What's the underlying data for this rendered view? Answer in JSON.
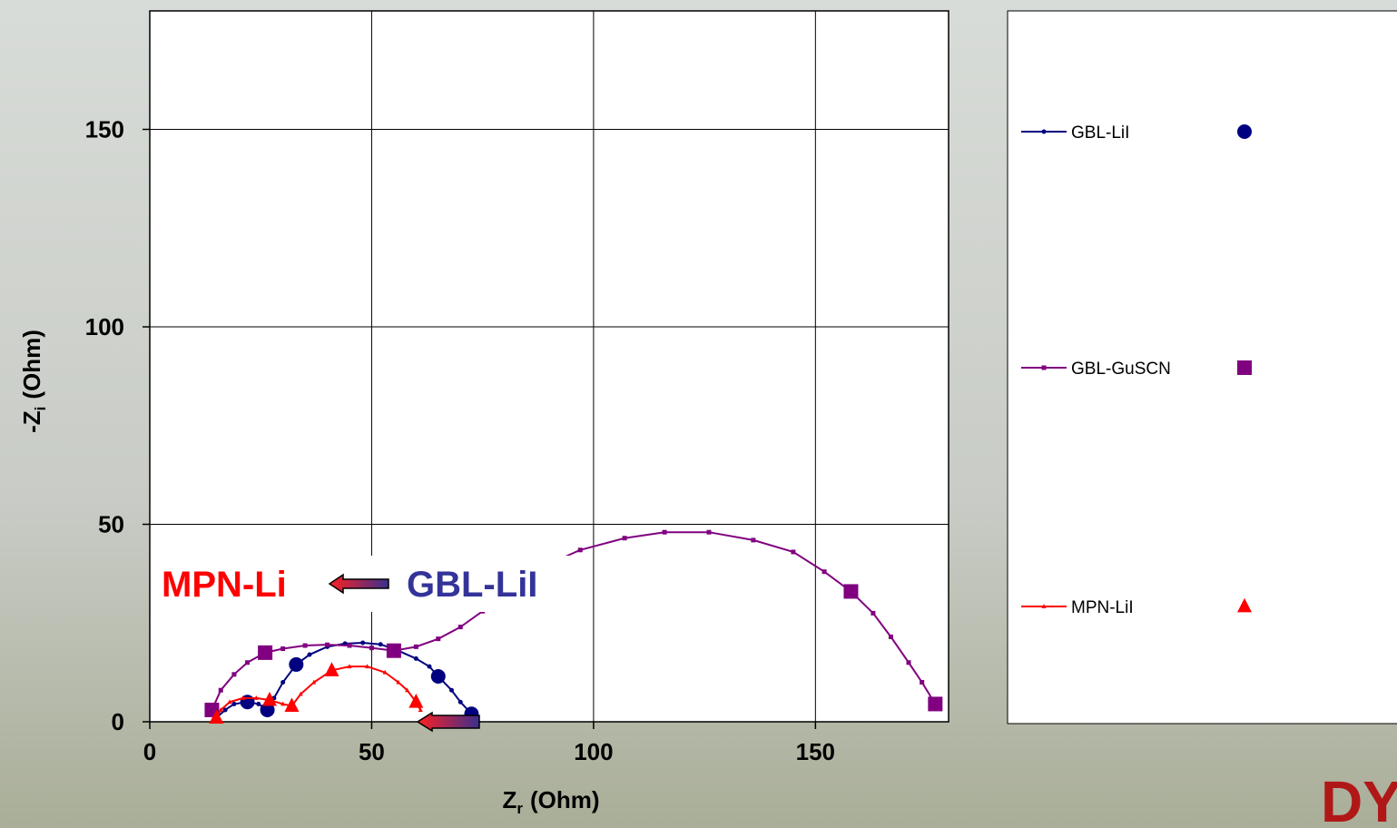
{
  "chart_data": {
    "type": "line",
    "xlabel": {
      "main": "Z",
      "sub": "r",
      "unit": "(Ohm)"
    },
    "ylabel": {
      "main": "-Z",
      "sub": "i",
      "unit": "(Ohm)"
    },
    "xlim": [
      0,
      180
    ],
    "ylim": [
      0,
      180
    ],
    "xticks": [
      0,
      50,
      100,
      150
    ],
    "yticks": [
      0,
      50,
      100,
      150
    ],
    "grid": true,
    "legend": "right",
    "series": [
      {
        "name": "GBL-LiI",
        "color": "#000080",
        "marker": "circle",
        "x": [
          15,
          17,
          19,
          22,
          24.5,
          26.5,
          28,
          30,
          33,
          36,
          40,
          44,
          48,
          52,
          56,
          60,
          63,
          65,
          68,
          70,
          72.5
        ],
        "values": [
          1,
          3,
          4.5,
          5,
          4.5,
          3,
          6,
          10,
          14.5,
          17,
          19,
          19.8,
          20,
          19.6,
          18,
          16,
          14,
          11.5,
          8,
          5,
          2
        ],
        "large_marker_indices": [
          3,
          5,
          8,
          17,
          20
        ]
      },
      {
        "name": "GBL-GuSCN",
        "color": "#800080",
        "marker": "square",
        "x": [
          14,
          16,
          19,
          22,
          26,
          30,
          35,
          40,
          45,
          50,
          55,
          60,
          65,
          70,
          75,
          80,
          85,
          90,
          97,
          107,
          116,
          126,
          136,
          145,
          152,
          158,
          163,
          167,
          171,
          174,
          177
        ],
        "values": [
          3,
          8,
          12,
          15,
          17.5,
          18.5,
          19.3,
          19.5,
          19.3,
          18.7,
          18,
          19,
          21,
          24,
          28,
          32,
          36,
          40,
          43.5,
          46.5,
          48,
          48,
          46,
          43,
          38,
          33,
          27.5,
          21.5,
          15,
          10,
          4.5
        ],
        "large_marker_indices": [
          0,
          4,
          10,
          25,
          30
        ]
      },
      {
        "name": "MPN-LiI",
        "color": "#ff0000",
        "marker": "triangle",
        "x": [
          15,
          16,
          18,
          21,
          24,
          27,
          30,
          32,
          34,
          37,
          41,
          45,
          49,
          53,
          56,
          58,
          60,
          61
        ],
        "values": [
          1,
          3,
          5,
          6,
          6,
          5.5,
          4.5,
          4,
          7,
          10,
          13,
          14,
          14,
          12.5,
          10,
          8,
          5,
          3
        ],
        "large_marker_indices": [
          0,
          5,
          7,
          10,
          16
        ]
      }
    ],
    "annotations": {
      "left": "MPN-Li",
      "right": "GBL-LiI"
    },
    "logo": "DYE"
  }
}
